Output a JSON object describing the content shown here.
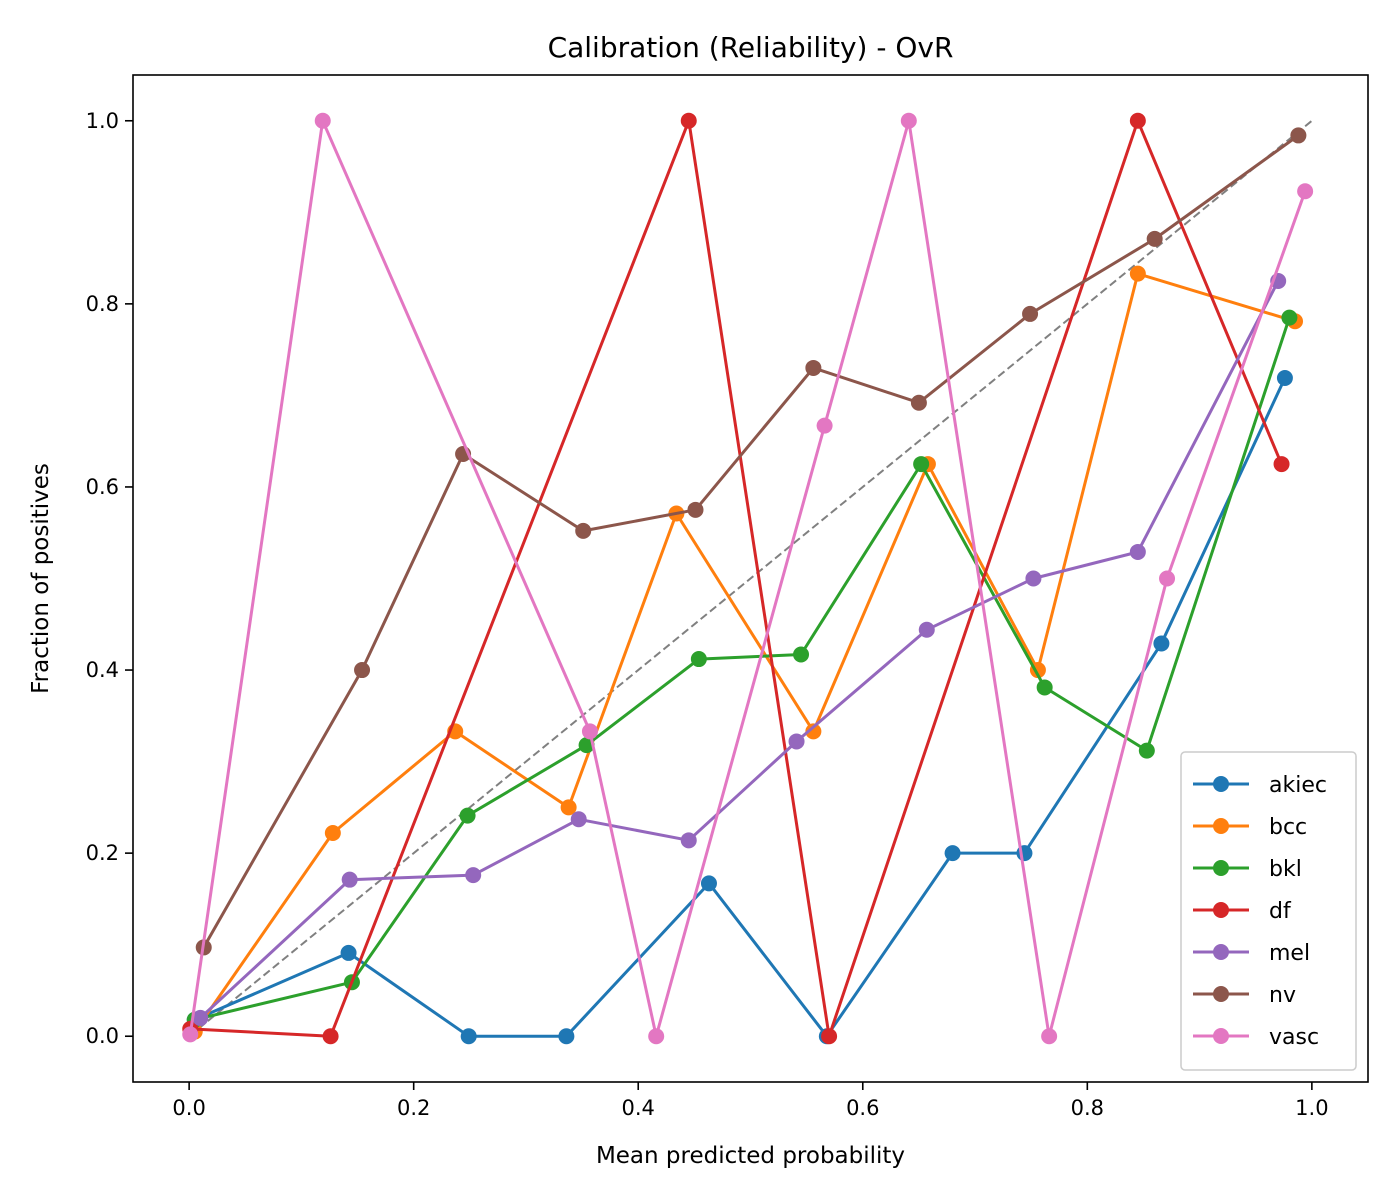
{
  "chart_data": {
    "type": "line",
    "title": "Calibration (Reliability) - OvR",
    "xlabel": "Mean predicted probability",
    "ylabel": "Fraction of positives",
    "xlim": [
      -0.05,
      1.05
    ],
    "ylim": [
      -0.05,
      1.05
    ],
    "xticks": [
      0.0,
      0.2,
      0.4,
      0.6,
      0.8,
      1.0
    ],
    "xtick_labels": [
      "0.0",
      "0.2",
      "0.4",
      "0.6",
      "0.8",
      "1.0"
    ],
    "yticks": [
      0.0,
      0.2,
      0.4,
      0.6,
      0.8,
      1.0
    ],
    "ytick_labels": [
      "0.0",
      "0.2",
      "0.4",
      "0.6",
      "0.8",
      "1.0"
    ],
    "grid": false,
    "legend_position": "lower-right",
    "reference_line": {
      "x": [
        0,
        1
      ],
      "y": [
        0,
        1
      ],
      "style": "dashed",
      "color": "#808080"
    },
    "series": [
      {
        "name": "akiec",
        "color": "#1f77b4",
        "x": [
          0.005,
          0.142,
          0.249,
          0.336,
          0.463,
          0.568,
          0.68,
          0.744,
          0.866,
          0.976
        ],
        "y": [
          0.018,
          0.091,
          0.0,
          0.0,
          0.167,
          0.0,
          0.2,
          0.2,
          0.429,
          0.719
        ]
      },
      {
        "name": "bcc",
        "color": "#ff7f0e",
        "x": [
          0.005,
          0.128,
          0.237,
          0.338,
          0.434,
          0.556,
          0.658,
          0.756,
          0.845,
          0.985
        ],
        "y": [
          0.005,
          0.222,
          0.333,
          0.25,
          0.571,
          0.333,
          0.625,
          0.4,
          0.833,
          0.781
        ]
      },
      {
        "name": "bkl",
        "color": "#2ca02c",
        "x": [
          0.005,
          0.145,
          0.248,
          0.354,
          0.454,
          0.545,
          0.652,
          0.762,
          0.853,
          0.98
        ],
        "y": [
          0.018,
          0.059,
          0.241,
          0.318,
          0.412,
          0.417,
          0.625,
          0.381,
          0.312,
          0.785
        ]
      },
      {
        "name": "df",
        "color": "#d62728",
        "x": [
          0.001,
          0.126,
          0.445,
          0.57,
          0.845,
          0.973
        ],
        "y": [
          0.008,
          0.0,
          1.0,
          0.0,
          1.0,
          0.625
        ]
      },
      {
        "name": "mel",
        "color": "#9467bd",
        "x": [
          0.01,
          0.143,
          0.253,
          0.347,
          0.445,
          0.541,
          0.657,
          0.752,
          0.845,
          0.97
        ],
        "y": [
          0.02,
          0.171,
          0.176,
          0.237,
          0.214,
          0.322,
          0.444,
          0.5,
          0.529,
          0.825
        ]
      },
      {
        "name": "nv",
        "color": "#8c564b",
        "x": [
          0.013,
          0.154,
          0.244,
          0.351,
          0.451,
          0.556,
          0.65,
          0.749,
          0.86,
          0.988
        ],
        "y": [
          0.097,
          0.4,
          0.636,
          0.552,
          0.575,
          0.73,
          0.692,
          0.789,
          0.871,
          0.984
        ]
      },
      {
        "name": "vasc",
        "color": "#e377c2",
        "x": [
          0.001,
          0.119,
          0.357,
          0.416,
          0.566,
          0.641,
          0.766,
          0.871,
          0.994
        ],
        "y": [
          0.002,
          1.0,
          0.333,
          0.0,
          0.667,
          1.0,
          0.0,
          0.5,
          0.923
        ]
      }
    ]
  }
}
